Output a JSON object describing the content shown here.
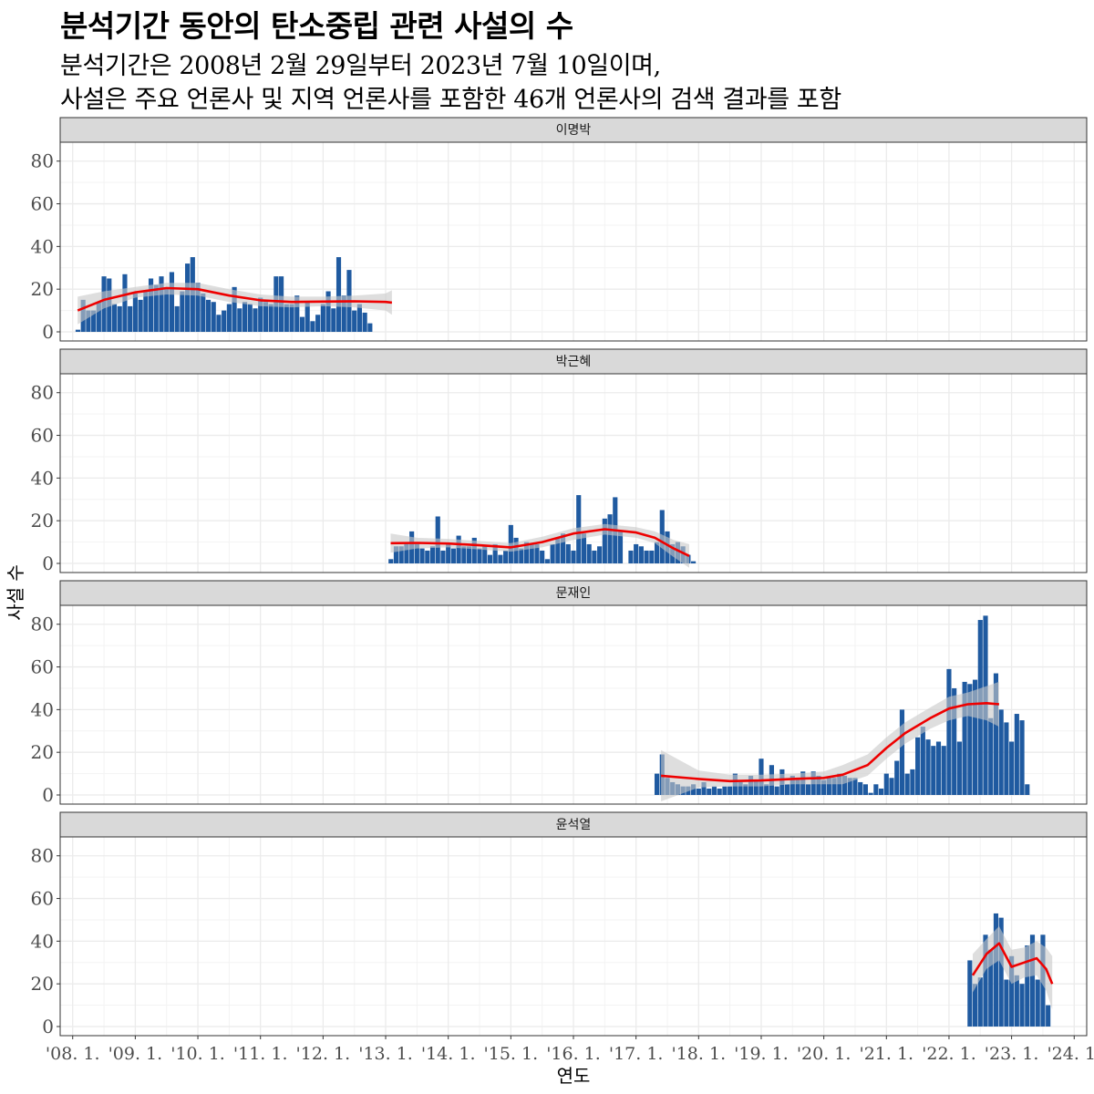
{
  "title": "분석기간 동안의 탄소중립 관련 사설의 수",
  "subtitle_lines": [
    "분석기간은 2008년 2월 29일부터 2023년 7월 10일이며,",
    "사설은 주요 언론사 및 지역 언론사를 포함한 46개 언론사의 검색 결과를 포함"
  ],
  "colors": {
    "bar": "#1f5aa0",
    "smooth": "#ee0000",
    "ribbon": "#c8c8c8",
    "strip": "#d9d9d9",
    "grid": "#ebebeb"
  },
  "chart_data": {
    "type": "bar",
    "xlabel": "연도",
    "ylabel": "사설 수",
    "ylim": [
      0,
      88
    ],
    "y_ticks": [
      0,
      20,
      40,
      60,
      80
    ],
    "xlim": [
      2007.8,
      2024.2
    ],
    "x_ticks": [
      2008,
      2009,
      2010,
      2011,
      2012,
      2013,
      2014,
      2015,
      2016,
      2017,
      2018,
      2019,
      2020,
      2021,
      2022,
      2023,
      2024
    ],
    "x_tick_labels": [
      "'08. 1.",
      "'09. 1.",
      "'10. 1.",
      "'11. 1.",
      "'12. 1.",
      "'13. 1.",
      "'14. 1.",
      "'15. 1.",
      "'16. 1.",
      "'17. 1.",
      "'18. 1.",
      "'19. 1.",
      "'20. 1.",
      "'21. 1.",
      "'22. 1.",
      "'23. 1.",
      "'24. 1."
    ],
    "panels": [
      {
        "name": "이명박",
        "start": "2008-02",
        "values": [
          1,
          15,
          10,
          10,
          14,
          26,
          25,
          13,
          12,
          27,
          12,
          18,
          15,
          19,
          25,
          22,
          26,
          20,
          28,
          12,
          19,
          32,
          35,
          23,
          18,
          15,
          14,
          8,
          10,
          13,
          21,
          11,
          14,
          13,
          11,
          16,
          14,
          13,
          26,
          26,
          13,
          13,
          17,
          7,
          14,
          5,
          8,
          13,
          19,
          11,
          35,
          17,
          29,
          10,
          13,
          9,
          4
        ],
        "smooth": [
          [
            2008.08,
            10
          ],
          [
            2008.5,
            15
          ],
          [
            2009,
            18.5
          ],
          [
            2009.5,
            20.5
          ],
          [
            2010,
            20
          ],
          [
            2010.5,
            17
          ],
          [
            2011,
            14.8
          ],
          [
            2011.5,
            14
          ],
          [
            2012,
            14.2
          ],
          [
            2012.5,
            14.3
          ],
          [
            2013,
            14
          ],
          [
            2013.1,
            13.7
          ]
        ],
        "ribbon_lower": [
          3.5,
          11,
          16,
          17.5,
          17,
          14,
          12,
          11.5,
          12,
          11.5,
          10,
          8
        ],
        "ribbon_upper": [
          16.5,
          19,
          21,
          23,
          23,
          20,
          17.5,
          16.5,
          16.5,
          17,
          18,
          19.5
        ]
      },
      {
        "name": "박근혜",
        "start": "2013-02",
        "values": [
          2,
          8,
          8,
          10,
          15,
          9,
          7,
          6,
          8,
          22,
          6,
          9,
          7,
          13,
          8,
          8,
          12,
          7,
          8,
          4,
          9,
          4,
          6,
          18,
          12,
          7,
          10,
          9,
          9,
          6,
          2,
          9,
          12,
          14,
          9,
          6,
          32,
          14,
          9,
          6,
          8,
          21,
          23,
          31,
          15,
          0,
          6,
          9,
          8,
          6,
          6,
          10,
          25,
          15,
          9,
          10,
          8,
          4,
          1
        ],
        "smooth": [
          [
            2013.08,
            9.5
          ],
          [
            2013.5,
            9.6
          ],
          [
            2014,
            9.3
          ],
          [
            2014.5,
            8.5
          ],
          [
            2015,
            7.5
          ],
          [
            2015.5,
            10
          ],
          [
            2016,
            14
          ],
          [
            2016.5,
            16
          ],
          [
            2017,
            14.5
          ],
          [
            2017.3,
            12
          ],
          [
            2017.6,
            7
          ],
          [
            2017.85,
            3.5
          ]
        ],
        "ribbon_lower": [
          5,
          7,
          7.5,
          6.5,
          5.5,
          7.5,
          11,
          13.5,
          12,
          9.5,
          3,
          -2
        ],
        "ribbon_upper": [
          14,
          12,
          11.5,
          10.5,
          9.5,
          12.5,
          16.5,
          18.5,
          17,
          15,
          11,
          9
        ]
      },
      {
        "name": "문재인",
        "start": "2017-05",
        "values": [
          10,
          19,
          8,
          6,
          5,
          4,
          4,
          5,
          3,
          6,
          3,
          4,
          3,
          4,
          4,
          10,
          6,
          5,
          9,
          7,
          17,
          5,
          14,
          4,
          12,
          5,
          9,
          8,
          11,
          5,
          11,
          9,
          7,
          8,
          8,
          10,
          9,
          8,
          8,
          6,
          5,
          1,
          5,
          3,
          10,
          8,
          16,
          40,
          10,
          12,
          27,
          32,
          26,
          23,
          25,
          23,
          59,
          50,
          25,
          53,
          52,
          54,
          82,
          84,
          36,
          57,
          40,
          34,
          25,
          38,
          35,
          5
        ],
        "smooth": [
          [
            2017.4,
            9
          ],
          [
            2018,
            7.5
          ],
          [
            2018.5,
            6.5
          ],
          [
            2019,
            6.8
          ],
          [
            2019.5,
            7.5
          ],
          [
            2020,
            8
          ],
          [
            2020.3,
            9.5
          ],
          [
            2020.7,
            14
          ],
          [
            2021,
            22
          ],
          [
            2021.3,
            29
          ],
          [
            2021.7,
            36
          ],
          [
            2022,
            40.5
          ],
          [
            2022.3,
            42.5
          ],
          [
            2022.6,
            43
          ],
          [
            2022.8,
            42.5
          ]
        ],
        "ribbon_lower": [
          -3,
          3.5,
          4,
          4,
          5,
          5,
          5,
          9,
          17,
          24,
          31,
          35,
          37,
          35,
          32
        ],
        "ribbon_upper": [
          21,
          11.5,
          9.5,
          9.5,
          10,
          11,
          14,
          19,
          27,
          34,
          41,
          46,
          48,
          51,
          53
        ]
      },
      {
        "name": "윤석열",
        "start": "2022-05",
        "values": [
          31,
          20,
          23,
          43,
          36,
          53,
          51,
          22,
          33,
          24,
          20,
          38,
          43,
          22,
          43,
          10
        ],
        "smooth": [
          [
            2022.38,
            24
          ],
          [
            2022.6,
            34
          ],
          [
            2022.8,
            39
          ],
          [
            2023,
            28
          ],
          [
            2023.2,
            30
          ],
          [
            2023.4,
            32
          ],
          [
            2023.55,
            27
          ],
          [
            2023.65,
            20
          ]
        ],
        "ribbon_lower": [
          16,
          27,
          31,
          20,
          23,
          24,
          17,
          8
        ],
        "ribbon_upper": [
          34,
          41,
          47,
          36,
          37,
          40,
          37,
          33
        ]
      }
    ]
  }
}
